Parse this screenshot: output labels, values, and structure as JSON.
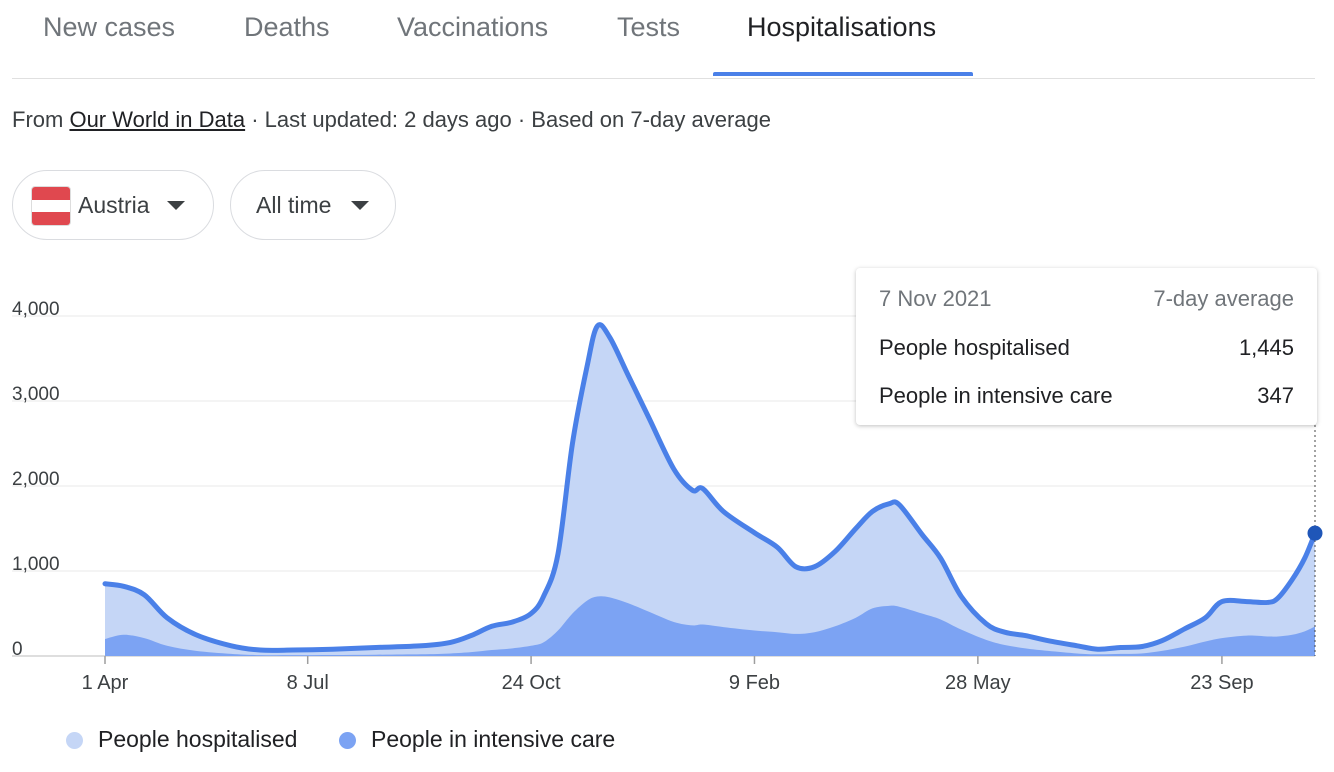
{
  "tabs": [
    "New cases",
    "Deaths",
    "Vaccinations",
    "Tests",
    "Hospitalisations"
  ],
  "active_tab": 4,
  "source": {
    "prefix": "From ",
    "link": "Our World in Data",
    "suffix": " · Last updated: 2 days ago · Based on 7-day average"
  },
  "filters": {
    "country": "Austria",
    "range": "All time"
  },
  "colors": {
    "accent": "#4a80e8",
    "hospitalised_fill": "#c5d6f6",
    "icu_fill": "#7ca3f3",
    "flag_red": "#e0484f",
    "marker": "#1f56b8"
  },
  "tooltip": {
    "date": "7 Nov 2021",
    "label": "7-day average",
    "rows": [
      {
        "name": "People hospitalised",
        "value": "1,445"
      },
      {
        "name": "People in intensive care",
        "value": "347"
      }
    ]
  },
  "legend": [
    {
      "name": "People hospitalised",
      "color": "#c5d6f6"
    },
    {
      "name": "People in intensive care",
      "color": "#7ca3f3"
    }
  ],
  "chart_data": {
    "type": "area",
    "x_tick_labels": [
      "1 Apr",
      "8 Jul",
      "24 Oct",
      "9 Feb",
      "28 May",
      "23 Sep"
    ],
    "x_tick_dates": [
      "2020-04-01",
      "2020-07-08",
      "2020-10-24",
      "2021-02-09",
      "2021-05-28",
      "2021-09-23"
    ],
    "x_start": "2020-04-01",
    "x_end": "2021-11-07",
    "y_ticks": [
      0,
      1000,
      2000,
      3000,
      4000
    ],
    "y_tick_labels": [
      "0",
      "1,000",
      "2,000",
      "3,000",
      "4,000"
    ],
    "ylim": [
      0,
      4000
    ],
    "grid": true,
    "legend_position": "bottom-left",
    "series": [
      {
        "name": "People hospitalised",
        "points": [
          [
            "2020-04-01",
            850
          ],
          [
            "2020-04-10",
            820
          ],
          [
            "2020-04-20",
            720
          ],
          [
            "2020-05-01",
            450
          ],
          [
            "2020-05-15",
            250
          ],
          [
            "2020-06-01",
            120
          ],
          [
            "2020-06-15",
            70
          ],
          [
            "2020-07-01",
            70
          ],
          [
            "2020-07-20",
            80
          ],
          [
            "2020-08-10",
            100
          ],
          [
            "2020-09-01",
            120
          ],
          [
            "2020-09-15",
            160
          ],
          [
            "2020-09-25",
            240
          ],
          [
            "2020-10-05",
            350
          ],
          [
            "2020-10-15",
            400
          ],
          [
            "2020-10-24",
            500
          ],
          [
            "2020-10-30",
            700
          ],
          [
            "2020-11-06",
            1200
          ],
          [
            "2020-11-13",
            2500
          ],
          [
            "2020-11-20",
            3400
          ],
          [
            "2020-11-25",
            3880
          ],
          [
            "2020-12-01",
            3750
          ],
          [
            "2020-12-10",
            3300
          ],
          [
            "2020-12-20",
            2800
          ],
          [
            "2021-01-01",
            2200
          ],
          [
            "2021-01-10",
            1950
          ],
          [
            "2021-01-15",
            1970
          ],
          [
            "2021-01-25",
            1700
          ],
          [
            "2021-02-09",
            1450
          ],
          [
            "2021-02-20",
            1280
          ],
          [
            "2021-03-01",
            1050
          ],
          [
            "2021-03-10",
            1050
          ],
          [
            "2021-03-20",
            1230
          ],
          [
            "2021-03-30",
            1500
          ],
          [
            "2021-04-07",
            1700
          ],
          [
            "2021-04-15",
            1790
          ],
          [
            "2021-04-20",
            1780
          ],
          [
            "2021-05-01",
            1430
          ],
          [
            "2021-05-10",
            1150
          ],
          [
            "2021-05-20",
            700
          ],
          [
            "2021-06-01",
            380
          ],
          [
            "2021-06-10",
            280
          ],
          [
            "2021-06-20",
            240
          ],
          [
            "2021-07-01",
            180
          ],
          [
            "2021-07-15",
            120
          ],
          [
            "2021-07-25",
            80
          ],
          [
            "2021-08-05",
            100
          ],
          [
            "2021-08-15",
            110
          ],
          [
            "2021-08-25",
            180
          ],
          [
            "2021-09-05",
            320
          ],
          [
            "2021-09-15",
            450
          ],
          [
            "2021-09-23",
            640
          ],
          [
            "2021-10-05",
            640
          ],
          [
            "2021-10-15",
            630
          ],
          [
            "2021-10-20",
            680
          ],
          [
            "2021-10-27",
            900
          ],
          [
            "2021-11-02",
            1150
          ],
          [
            "2021-11-07",
            1445
          ]
        ]
      },
      {
        "name": "People in intensive care",
        "points": [
          [
            "2020-04-01",
            200
          ],
          [
            "2020-04-10",
            250
          ],
          [
            "2020-04-20",
            210
          ],
          [
            "2020-05-01",
            120
          ],
          [
            "2020-05-15",
            60
          ],
          [
            "2020-06-01",
            25
          ],
          [
            "2020-06-15",
            10
          ],
          [
            "2020-07-01",
            10
          ],
          [
            "2020-07-20",
            12
          ],
          [
            "2020-08-10",
            15
          ],
          [
            "2020-09-01",
            20
          ],
          [
            "2020-09-15",
            30
          ],
          [
            "2020-09-25",
            45
          ],
          [
            "2020-10-05",
            70
          ],
          [
            "2020-10-15",
            90
          ],
          [
            "2020-10-24",
            120
          ],
          [
            "2020-10-30",
            160
          ],
          [
            "2020-11-06",
            300
          ],
          [
            "2020-11-13",
            500
          ],
          [
            "2020-11-20",
            650
          ],
          [
            "2020-11-25",
            700
          ],
          [
            "2020-12-01",
            690
          ],
          [
            "2020-12-10",
            620
          ],
          [
            "2020-12-20",
            520
          ],
          [
            "2021-01-01",
            400
          ],
          [
            "2021-01-10",
            360
          ],
          [
            "2021-01-15",
            370
          ],
          [
            "2021-01-25",
            340
          ],
          [
            "2021-02-09",
            300
          ],
          [
            "2021-02-20",
            280
          ],
          [
            "2021-03-01",
            260
          ],
          [
            "2021-03-10",
            280
          ],
          [
            "2021-03-20",
            350
          ],
          [
            "2021-03-30",
            450
          ],
          [
            "2021-04-07",
            560
          ],
          [
            "2021-04-15",
            590
          ],
          [
            "2021-04-20",
            580
          ],
          [
            "2021-05-01",
            500
          ],
          [
            "2021-05-10",
            430
          ],
          [
            "2021-05-20",
            310
          ],
          [
            "2021-06-01",
            190
          ],
          [
            "2021-06-10",
            130
          ],
          [
            "2021-06-20",
            90
          ],
          [
            "2021-07-01",
            60
          ],
          [
            "2021-07-15",
            30
          ],
          [
            "2021-07-25",
            20
          ],
          [
            "2021-08-05",
            25
          ],
          [
            "2021-08-15",
            30
          ],
          [
            "2021-08-25",
            60
          ],
          [
            "2021-09-05",
            110
          ],
          [
            "2021-09-15",
            170
          ],
          [
            "2021-09-23",
            210
          ],
          [
            "2021-10-05",
            240
          ],
          [
            "2021-10-15",
            230
          ],
          [
            "2021-10-20",
            230
          ],
          [
            "2021-10-27",
            250
          ],
          [
            "2021-11-02",
            290
          ],
          [
            "2021-11-07",
            347
          ]
        ]
      }
    ]
  }
}
